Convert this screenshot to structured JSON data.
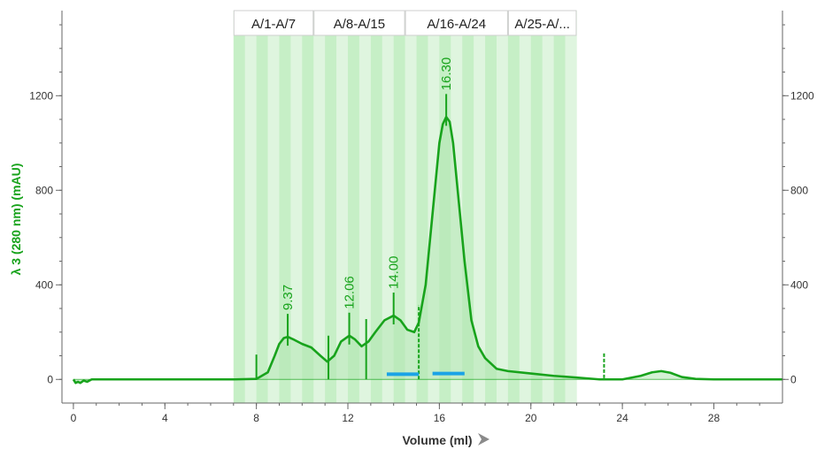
{
  "chart_data": {
    "type": "line",
    "xlabel": "Volume (ml)",
    "ylabel": "λ 3 (280 nm) (mAU)",
    "xlim": [
      -0.5,
      31
    ],
    "ylim": [
      -100,
      1560
    ],
    "x_ticks": [
      0,
      4,
      8,
      12,
      16,
      20,
      24,
      28
    ],
    "x_minor_step": 1,
    "y_ticks": [
      0,
      400,
      800,
      1200
    ],
    "y_minor_step": 100,
    "grid": false,
    "colors": {
      "trace": "#18a31c",
      "trace_fill": "#b3e6b3",
      "fraction_light": "#dff5df",
      "fraction_dark": "#c6efc6",
      "pool_bar": "#1aa3e6",
      "axis": "#666666"
    },
    "fraction_region": {
      "start": 7,
      "end": 22,
      "step": 0.5
    },
    "fraction_groups": [
      {
        "label": "A/1-A/7",
        "start": 7,
        "end": 10.5
      },
      {
        "label": "A/8-A/15",
        "start": 10.5,
        "end": 14.5
      },
      {
        "label": "A/16-A/24",
        "start": 14.5,
        "end": 19
      },
      {
        "label": "A/25-A/...",
        "start": 19,
        "end": 22
      }
    ],
    "series": [
      {
        "x": [
          0,
          0.1,
          0.2,
          0.3,
          0.45,
          0.6,
          0.8,
          1,
          3,
          5,
          7,
          8,
          8.5,
          8.8,
          9,
          9.2,
          9.37,
          9.6,
          10,
          10.4,
          10.8,
          11.1,
          11.4,
          11.7,
          12.06,
          12.3,
          12.6,
          12.9,
          13.2,
          13.6,
          14,
          14.3,
          14.6,
          14.9,
          15.1,
          15.4,
          15.7,
          16,
          16.15,
          16.3,
          16.45,
          16.6,
          16.8,
          17.1,
          17.4,
          17.7,
          18,
          18.5,
          19,
          20,
          21,
          22,
          23,
          24,
          24.8,
          25.3,
          25.7,
          26.1,
          26.6,
          27.2,
          28,
          30,
          31
        ],
        "y": [
          0,
          -15,
          -10,
          -15,
          -5,
          -10,
          0,
          0,
          0,
          0,
          0,
          2,
          30,
          100,
          150,
          175,
          180,
          170,
          150,
          135,
          100,
          75,
          100,
          160,
          185,
          170,
          140,
          160,
          200,
          250,
          270,
          250,
          210,
          200,
          240,
          400,
          700,
          1000,
          1080,
          1110,
          1090,
          1000,
          800,
          500,
          250,
          140,
          90,
          45,
          35,
          25,
          15,
          8,
          0,
          0,
          15,
          30,
          35,
          28,
          10,
          2,
          0,
          0,
          0
        ]
      }
    ],
    "peaks": [
      {
        "label": "9.37",
        "x": 9.37,
        "y": 180
      },
      {
        "label": "12.06",
        "x": 12.06,
        "y": 185
      },
      {
        "label": "14.00",
        "x": 14.0,
        "y": 270
      },
      {
        "label": "16.30",
        "x": 16.3,
        "y": 1110
      }
    ],
    "markers": [
      {
        "x": 8.0,
        "y_bottom": 0,
        "y_top": 105,
        "style": "solid"
      },
      {
        "x": 11.15,
        "y_bottom": 0,
        "y_top": 185,
        "style": "solid"
      },
      {
        "x": 12.8,
        "y_bottom": 0,
        "y_top": 255,
        "style": "solid"
      },
      {
        "x": 15.1,
        "y_bottom": 0,
        "y_top": 315,
        "style": "dashed"
      },
      {
        "x": 23.2,
        "y_bottom": 5,
        "y_top": 110,
        "style": "dashed"
      }
    ],
    "pool_bars": [
      {
        "start": 13.7,
        "end": 15.1,
        "y": 22
      },
      {
        "start": 15.7,
        "end": 17.1,
        "y": 25
      }
    ]
  }
}
